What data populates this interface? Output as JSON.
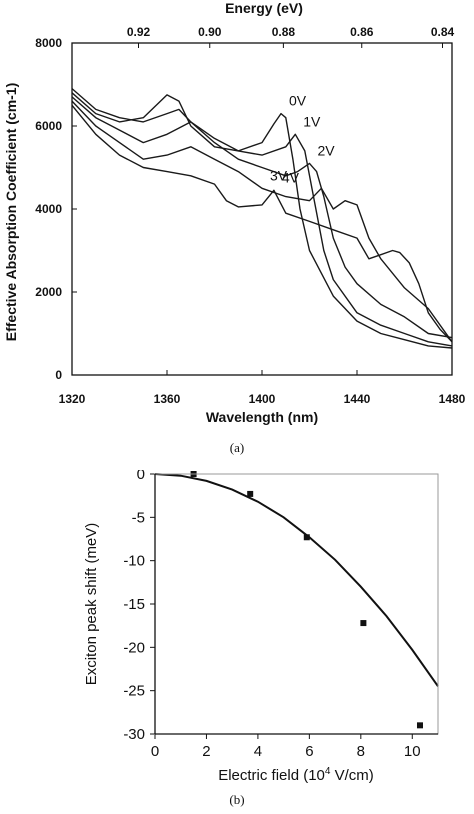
{
  "chart_data": [
    {
      "type": "line",
      "caption": "(a)",
      "xlabel": "Wavelength (nm)",
      "ylabel": "Effective Absorption Coefficient (cm-1)",
      "top_xlabel": "Energy (eV)",
      "xlim": [
        1320,
        1480
      ],
      "ylim": [
        0,
        8000
      ],
      "xticks": [
        1320,
        1360,
        1400,
        1440,
        1480
      ],
      "xtick_labels": [
        "1320",
        "1360",
        "1400",
        "1440",
        "1480"
      ],
      "yticks": [
        0,
        2000,
        4000,
        6000,
        8000
      ],
      "ytick_labels": [
        "0",
        "2000",
        "4000",
        "6000",
        "8000"
      ],
      "top_ticks": [
        {
          "label": "0.92",
          "wavelength": 1348
        },
        {
          "label": "0.90",
          "wavelength": 1378
        },
        {
          "label": "0.88",
          "wavelength": 1409
        },
        {
          "label": "0.86",
          "wavelength": 1442
        },
        {
          "label": "0.84",
          "wavelength": 1476
        }
      ],
      "series": [
        {
          "name": "0V",
          "x": [
            1320,
            1330,
            1340,
            1350,
            1360,
            1365,
            1370,
            1380,
            1390,
            1400,
            1405,
            1408,
            1410,
            1413,
            1416,
            1420,
            1430,
            1440,
            1450,
            1460,
            1470,
            1480
          ],
          "y": [
            6800,
            6300,
            6100,
            6200,
            6750,
            6600,
            6000,
            5500,
            5400,
            5600,
            6050,
            6300,
            6200,
            5200,
            4000,
            3000,
            1900,
            1300,
            1000,
            850,
            700,
            650
          ]
        },
        {
          "name": "1V",
          "x": [
            1320,
            1330,
            1340,
            1350,
            1360,
            1365,
            1370,
            1380,
            1390,
            1400,
            1410,
            1414,
            1418,
            1422,
            1426,
            1430,
            1440,
            1450,
            1460,
            1470,
            1480
          ],
          "y": [
            6900,
            6400,
            6200,
            6100,
            6300,
            6400,
            6100,
            5700,
            5400,
            5300,
            5500,
            5800,
            5400,
            4200,
            3000,
            2300,
            1500,
            1200,
            1000,
            800,
            700
          ]
        },
        {
          "name": "2V",
          "x": [
            1320,
            1330,
            1340,
            1350,
            1360,
            1370,
            1380,
            1390,
            1400,
            1410,
            1415,
            1420,
            1423,
            1426,
            1430,
            1435,
            1440,
            1450,
            1460,
            1470,
            1480
          ],
          "y": [
            6700,
            6200,
            5900,
            5600,
            5800,
            6100,
            5600,
            5200,
            5000,
            4800,
            4900,
            5100,
            4900,
            4300,
            3300,
            2600,
            2200,
            1700,
            1400,
            1000,
            900
          ]
        },
        {
          "name": "3V",
          "x": [
            1320,
            1330,
            1340,
            1350,
            1360,
            1370,
            1380,
            1390,
            1400,
            1410,
            1420,
            1425,
            1430,
            1435,
            1440,
            1445,
            1450,
            1460,
            1470,
            1480
          ],
          "y": [
            6600,
            6000,
            5600,
            5200,
            5300,
            5500,
            5200,
            4900,
            4500,
            4300,
            4200,
            4500,
            4000,
            4200,
            4100,
            3300,
            2800,
            2100,
            1600,
            800
          ]
        },
        {
          "name": "4V",
          "x": [
            1320,
            1330,
            1340,
            1350,
            1360,
            1370,
            1380,
            1385,
            1390,
            1400,
            1405,
            1410,
            1420,
            1430,
            1440,
            1445,
            1450,
            1455,
            1458,
            1462,
            1466,
            1470,
            1475,
            1480
          ],
          "y": [
            6500,
            5800,
            5300,
            5000,
            4900,
            4800,
            4600,
            4200,
            4050,
            4100,
            4450,
            3900,
            3700,
            3500,
            3300,
            2800,
            2900,
            3000,
            2950,
            2700,
            2200,
            1500,
            1100,
            800
          ]
        }
      ],
      "grid": false,
      "legend": "inline"
    },
    {
      "type": "scatter",
      "caption": "(b)",
      "xlabel": "Electric field (10^4 V/cm)",
      "xlabel_main": "Electric field (10",
      "xlabel_sup": "4",
      "xlabel_tail": " V/cm)",
      "ylabel": "Exciton peak shift (meV)",
      "xlim": [
        0,
        11
      ],
      "ylim": [
        -30,
        0
      ],
      "xticks": [
        0,
        2,
        4,
        6,
        8,
        10
      ],
      "xtick_labels": [
        "0",
        "2",
        "4",
        "6",
        "8",
        "10"
      ],
      "yticks": [
        0,
        -5,
        -10,
        -15,
        -20,
        -25,
        -30
      ],
      "ytick_labels": [
        "0",
        "-5",
        "-10",
        "-15",
        "-20",
        "-25",
        "-30"
      ],
      "points": {
        "x": [
          1.5,
          3.7,
          5.9,
          8.1,
          10.3
        ],
        "y": [
          0,
          -2.3,
          -7.3,
          -17.2,
          -29
        ]
      },
      "fit": {
        "x": [
          0,
          1,
          2,
          3,
          4,
          5,
          6,
          7,
          8,
          9,
          10,
          11
        ],
        "y": [
          0,
          -0.2,
          -0.8,
          -1.8,
          -3.2,
          -5.0,
          -7.3,
          -9.9,
          -13.0,
          -16.4,
          -20.3,
          -24.5
        ]
      },
      "grid": false
    }
  ]
}
